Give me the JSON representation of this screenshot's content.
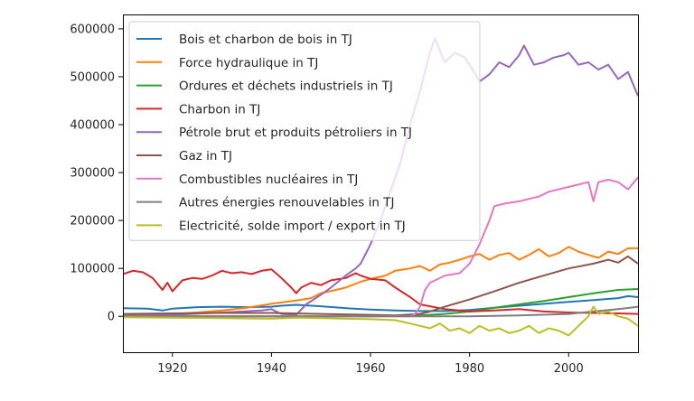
{
  "chart_data": {
    "type": "line",
    "title": "",
    "xlabel": "",
    "ylabel": "",
    "xlim": [
      1910,
      2014
    ],
    "ylim": [
      -75000,
      630000
    ],
    "grid": false,
    "legend_position": "upper-left",
    "x_ticks": [
      {
        "value": 1920,
        "label": "1920"
      },
      {
        "value": 1940,
        "label": "1940"
      },
      {
        "value": 1960,
        "label": "1960"
      },
      {
        "value": 1980,
        "label": "1980"
      },
      {
        "value": 2000,
        "label": "2000"
      }
    ],
    "y_ticks": [
      {
        "value": 0,
        "label": "0"
      },
      {
        "value": 100000,
        "label": "100000"
      },
      {
        "value": 200000,
        "label": "200000"
      },
      {
        "value": 300000,
        "label": "300000"
      },
      {
        "value": 400000,
        "label": "400000"
      },
      {
        "value": 500000,
        "label": "500000"
      },
      {
        "value": 600000,
        "label": "600000"
      }
    ],
    "series": [
      {
        "name": "Bois et charbon de bois in TJ",
        "color": "#1f77b4",
        "points": [
          [
            1910,
            17000
          ],
          [
            1915,
            16000
          ],
          [
            1918,
            12000
          ],
          [
            1920,
            16000
          ],
          [
            1925,
            19000
          ],
          [
            1930,
            20000
          ],
          [
            1935,
            19000
          ],
          [
            1940,
            20000
          ],
          [
            1942,
            22000
          ],
          [
            1945,
            24000
          ],
          [
            1950,
            21000
          ],
          [
            1955,
            17000
          ],
          [
            1960,
            14000
          ],
          [
            1965,
            12000
          ],
          [
            1970,
            11000
          ],
          [
            1975,
            11000
          ],
          [
            1980,
            13000
          ],
          [
            1983,
            16000
          ],
          [
            1985,
            18000
          ],
          [
            1990,
            22000
          ],
          [
            1995,
            26000
          ],
          [
            2000,
            30000
          ],
          [
            2005,
            34000
          ],
          [
            2010,
            38000
          ],
          [
            2012,
            42000
          ],
          [
            2014,
            40000
          ]
        ]
      },
      {
        "name": "Force hydraulique in TJ",
        "color": "#ff7f0e",
        "points": [
          [
            1910,
            1000
          ],
          [
            1915,
            3000
          ],
          [
            1920,
            5000
          ],
          [
            1925,
            8000
          ],
          [
            1930,
            12000
          ],
          [
            1935,
            18000
          ],
          [
            1940,
            26000
          ],
          [
            1945,
            33000
          ],
          [
            1948,
            38000
          ],
          [
            1950,
            48000
          ],
          [
            1953,
            55000
          ],
          [
            1955,
            60000
          ],
          [
            1958,
            72000
          ],
          [
            1960,
            78000
          ],
          [
            1963,
            85000
          ],
          [
            1965,
            95000
          ],
          [
            1968,
            100000
          ],
          [
            1970,
            105000
          ],
          [
            1972,
            95000
          ],
          [
            1974,
            108000
          ],
          [
            1976,
            112000
          ],
          [
            1978,
            118000
          ],
          [
            1980,
            125000
          ],
          [
            1982,
            130000
          ],
          [
            1984,
            118000
          ],
          [
            1986,
            128000
          ],
          [
            1988,
            132000
          ],
          [
            1990,
            118000
          ],
          [
            1992,
            128000
          ],
          [
            1994,
            140000
          ],
          [
            1996,
            125000
          ],
          [
            1998,
            132000
          ],
          [
            2000,
            145000
          ],
          [
            2002,
            135000
          ],
          [
            2004,
            128000
          ],
          [
            2006,
            122000
          ],
          [
            2008,
            135000
          ],
          [
            2010,
            130000
          ],
          [
            2012,
            142000
          ],
          [
            2014,
            142000
          ]
        ]
      },
      {
        "name": "Ordures et déchets industriels in TJ",
        "color": "#2ca02c",
        "points": [
          [
            1910,
            0
          ],
          [
            1960,
            0
          ],
          [
            1970,
            2000
          ],
          [
            1975,
            5000
          ],
          [
            1980,
            10000
          ],
          [
            1985,
            18000
          ],
          [
            1990,
            25000
          ],
          [
            1995,
            32000
          ],
          [
            2000,
            40000
          ],
          [
            2005,
            48000
          ],
          [
            2010,
            55000
          ],
          [
            2014,
            57000
          ]
        ]
      },
      {
        "name": "Charbon in TJ",
        "color": "#d62728",
        "points": [
          [
            1910,
            88000
          ],
          [
            1912,
            95000
          ],
          [
            1914,
            92000
          ],
          [
            1916,
            80000
          ],
          [
            1918,
            55000
          ],
          [
            1919,
            70000
          ],
          [
            1920,
            52000
          ],
          [
            1922,
            75000
          ],
          [
            1924,
            80000
          ],
          [
            1926,
            78000
          ],
          [
            1928,
            85000
          ],
          [
            1930,
            95000
          ],
          [
            1932,
            90000
          ],
          [
            1934,
            92000
          ],
          [
            1936,
            88000
          ],
          [
            1938,
            95000
          ],
          [
            1940,
            98000
          ],
          [
            1942,
            80000
          ],
          [
            1944,
            60000
          ],
          [
            1945,
            48000
          ],
          [
            1946,
            60000
          ],
          [
            1948,
            70000
          ],
          [
            1950,
            65000
          ],
          [
            1952,
            75000
          ],
          [
            1955,
            80000
          ],
          [
            1957,
            90000
          ],
          [
            1958,
            85000
          ],
          [
            1960,
            78000
          ],
          [
            1963,
            75000
          ],
          [
            1965,
            60000
          ],
          [
            1968,
            40000
          ],
          [
            1970,
            25000
          ],
          [
            1975,
            15000
          ],
          [
            1980,
            10000
          ],
          [
            1985,
            12000
          ],
          [
            1990,
            15000
          ],
          [
            1995,
            10000
          ],
          [
            2000,
            8000
          ],
          [
            2005,
            7000
          ],
          [
            2010,
            6000
          ],
          [
            2014,
            5000
          ]
        ]
      },
      {
        "name": "Pétrole brut et produits pétroliers in TJ",
        "color": "#9467bd",
        "points": [
          [
            1910,
            1000
          ],
          [
            1920,
            3000
          ],
          [
            1930,
            8000
          ],
          [
            1938,
            12000
          ],
          [
            1940,
            15000
          ],
          [
            1942,
            5000
          ],
          [
            1945,
            3000
          ],
          [
            1947,
            25000
          ],
          [
            1950,
            45000
          ],
          [
            1952,
            60000
          ],
          [
            1955,
            85000
          ],
          [
            1957,
            100000
          ],
          [
            1958,
            110000
          ],
          [
            1960,
            150000
          ],
          [
            1962,
            200000
          ],
          [
            1964,
            260000
          ],
          [
            1966,
            320000
          ],
          [
            1968,
            400000
          ],
          [
            1970,
            470000
          ],
          [
            1972,
            550000
          ],
          [
            1973,
            580000
          ],
          [
            1975,
            530000
          ],
          [
            1977,
            550000
          ],
          [
            1979,
            540000
          ],
          [
            1980,
            525000
          ],
          [
            1982,
            490000
          ],
          [
            1984,
            505000
          ],
          [
            1986,
            530000
          ],
          [
            1988,
            520000
          ],
          [
            1990,
            545000
          ],
          [
            1991,
            565000
          ],
          [
            1993,
            525000
          ],
          [
            1995,
            530000
          ],
          [
            1997,
            540000
          ],
          [
            1999,
            545000
          ],
          [
            2000,
            550000
          ],
          [
            2002,
            525000
          ],
          [
            2004,
            530000
          ],
          [
            2006,
            515000
          ],
          [
            2008,
            525000
          ],
          [
            2010,
            495000
          ],
          [
            2012,
            510000
          ],
          [
            2014,
            460000
          ]
        ]
      },
      {
        "name": "Gaz in TJ",
        "color": "#8c564b",
        "points": [
          [
            1910,
            5000
          ],
          [
            1920,
            6000
          ],
          [
            1930,
            7000
          ],
          [
            1940,
            7000
          ],
          [
            1950,
            5000
          ],
          [
            1960,
            3000
          ],
          [
            1965,
            2000
          ],
          [
            1970,
            5000
          ],
          [
            1972,
            10000
          ],
          [
            1975,
            20000
          ],
          [
            1980,
            35000
          ],
          [
            1985,
            52000
          ],
          [
            1990,
            70000
          ],
          [
            1995,
            85000
          ],
          [
            2000,
            100000
          ],
          [
            2005,
            110000
          ],
          [
            2008,
            118000
          ],
          [
            2010,
            112000
          ],
          [
            2012,
            125000
          ],
          [
            2014,
            110000
          ]
        ]
      },
      {
        "name": "Combustibles nucléaires in TJ",
        "color": "#e377c2",
        "points": [
          [
            1910,
            0
          ],
          [
            1968,
            0
          ],
          [
            1969,
            5000
          ],
          [
            1970,
            20000
          ],
          [
            1971,
            55000
          ],
          [
            1972,
            70000
          ],
          [
            1975,
            85000
          ],
          [
            1978,
            90000
          ],
          [
            1979,
            100000
          ],
          [
            1980,
            110000
          ],
          [
            1982,
            150000
          ],
          [
            1984,
            200000
          ],
          [
            1985,
            230000
          ],
          [
            1987,
            235000
          ],
          [
            1990,
            240000
          ],
          [
            1992,
            245000
          ],
          [
            1994,
            250000
          ],
          [
            1996,
            260000
          ],
          [
            1998,
            265000
          ],
          [
            2000,
            270000
          ],
          [
            2002,
            275000
          ],
          [
            2004,
            280000
          ],
          [
            2005,
            240000
          ],
          [
            2006,
            280000
          ],
          [
            2008,
            285000
          ],
          [
            2010,
            280000
          ],
          [
            2012,
            265000
          ],
          [
            2014,
            290000
          ]
        ]
      },
      {
        "name": "Autres énergies renouvelables in TJ",
        "color": "#7f7f7f",
        "points": [
          [
            1910,
            0
          ],
          [
            1980,
            0
          ],
          [
            1990,
            2000
          ],
          [
            2000,
            5000
          ],
          [
            2005,
            10000
          ],
          [
            2010,
            15000
          ],
          [
            2014,
            20000
          ]
        ]
      },
      {
        "name": "Electricité, solde import / export in TJ",
        "color": "#bcbd22",
        "points": [
          [
            1910,
            -2000
          ],
          [
            1920,
            -3000
          ],
          [
            1930,
            -4000
          ],
          [
            1940,
            -5000
          ],
          [
            1945,
            -3000
          ],
          [
            1950,
            -4000
          ],
          [
            1955,
            -5000
          ],
          [
            1960,
            -6000
          ],
          [
            1965,
            -8000
          ],
          [
            1968,
            -15000
          ],
          [
            1970,
            -20000
          ],
          [
            1972,
            -25000
          ],
          [
            1974,
            -15000
          ],
          [
            1976,
            -30000
          ],
          [
            1978,
            -25000
          ],
          [
            1980,
            -35000
          ],
          [
            1982,
            -20000
          ],
          [
            1984,
            -30000
          ],
          [
            1986,
            -25000
          ],
          [
            1988,
            -35000
          ],
          [
            1990,
            -30000
          ],
          [
            1992,
            -20000
          ],
          [
            1994,
            -35000
          ],
          [
            1996,
            -25000
          ],
          [
            1998,
            -30000
          ],
          [
            2000,
            -40000
          ],
          [
            2002,
            -20000
          ],
          [
            2004,
            0
          ],
          [
            2005,
            20000
          ],
          [
            2006,
            5000
          ],
          [
            2008,
            10000
          ],
          [
            2010,
            0
          ],
          [
            2012,
            -5000
          ],
          [
            2014,
            -20000
          ]
        ]
      }
    ]
  }
}
